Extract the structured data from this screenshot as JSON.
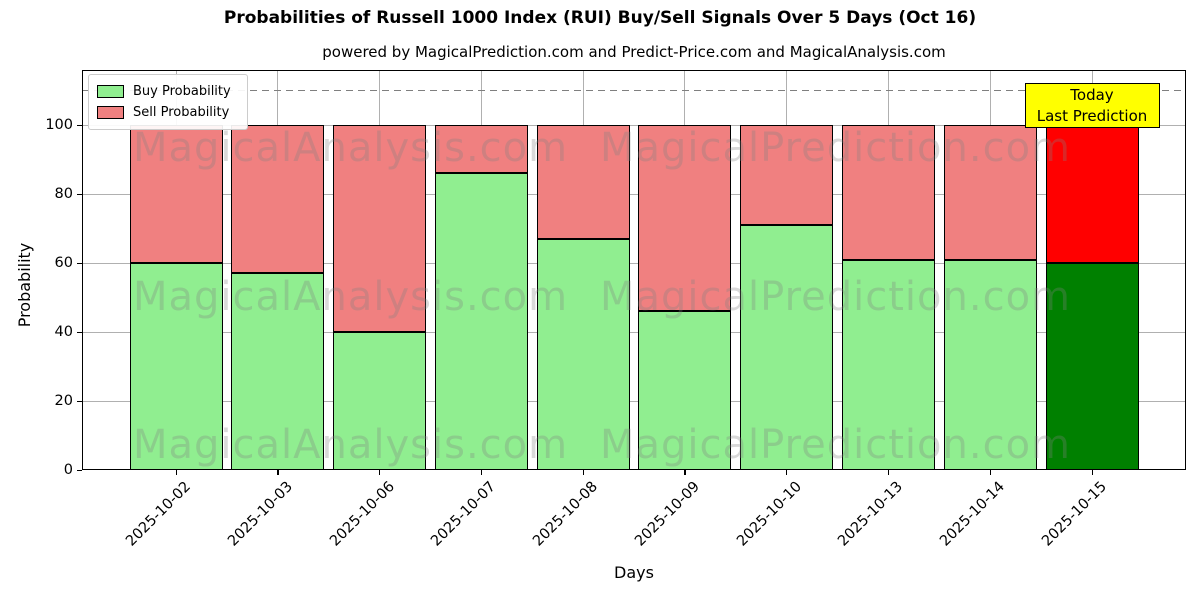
{
  "chart_data": {
    "type": "bar",
    "stacked": true,
    "title": "Probabilities of Russell 1000 Index (RUI) Buy/Sell Signals Over 5 Days (Oct 16)",
    "subtitle": "powered by MagicalPrediction.com and Predict-Price.com and MagicalAnalysis.com",
    "xlabel": "Days",
    "ylabel": "Probability",
    "categories": [
      "2025-10-02",
      "2025-10-03",
      "2025-10-06",
      "2025-10-07",
      "2025-10-08",
      "2025-10-09",
      "2025-10-10",
      "2025-10-13",
      "2025-10-14",
      "2025-10-15"
    ],
    "series": [
      {
        "name": "Buy Probability",
        "color": "#90EE90",
        "final_bar_color": "#008000",
        "values": [
          60,
          57,
          40,
          86,
          67,
          46,
          71,
          61,
          61,
          60
        ]
      },
      {
        "name": "Sell Probability",
        "color": "#F08080",
        "final_bar_color": "#FF0000",
        "values": [
          40,
          43,
          60,
          14,
          33,
          54,
          29,
          39,
          39,
          40
        ]
      }
    ],
    "bar_total": 100,
    "yticks": [
      0,
      20,
      40,
      60,
      80,
      100
    ],
    "ylim": [
      0,
      116
    ],
    "grid": true,
    "threshold_line": {
      "y": 110,
      "style": "dashed",
      "color": "#7F7F7F"
    },
    "legend_position": "upper-left",
    "annotation": {
      "lines": [
        "Today",
        "Last Prediction"
      ],
      "bg_color": "#FFFF00",
      "target_category": "2025-10-15"
    },
    "watermarks": [
      "MagicalAnalysis.com",
      "MagicalPrediction.com"
    ]
  }
}
